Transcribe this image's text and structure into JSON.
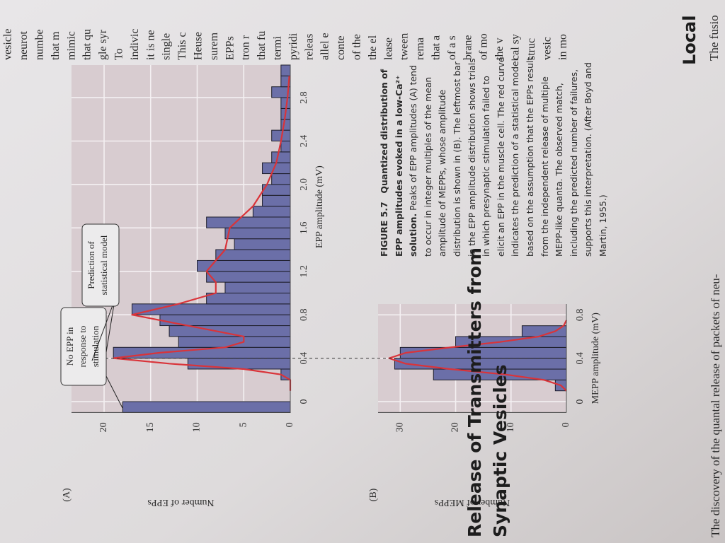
{
  "chart_data": [
    {
      "type": "histogram",
      "label": "(A)",
      "xlabel": "EPP amplitude (mV)",
      "ylabel": "Number of EPPs",
      "bins": [
        -0.1,
        0,
        0.1,
        0.2,
        0.3,
        0.4,
        0.5,
        0.6,
        0.7,
        0.8,
        0.9,
        1,
        1.1,
        1.2,
        1.3,
        1.4,
        1.5,
        1.6,
        1.7,
        1.8,
        1.9,
        2,
        2.1,
        2.2,
        2.3,
        2.4,
        2.5,
        2.6,
        2.7,
        2.8,
        2.9,
        3,
        3.1
      ],
      "values": [
        18,
        0,
        0,
        1,
        11,
        19,
        12,
        13,
        14,
        17,
        9,
        7,
        9,
        10,
        8,
        6,
        7,
        9,
        4,
        3,
        3,
        2,
        3,
        2,
        1,
        2,
        1,
        1,
        1,
        2,
        1,
        1
      ],
      "color": "#6b6fa8",
      "curve": {
        "color": "#d9343a",
        "x": [
          0.1,
          0.2,
          0.25,
          0.3,
          0.35,
          0.4,
          0.45,
          0.5,
          0.55,
          0.6,
          0.7,
          0.8,
          0.9,
          1,
          1.1,
          1.2,
          1.3,
          1.4,
          1.6,
          1.8,
          2,
          2.2,
          2.4,
          2.6,
          2.8,
          3
        ],
        "values": [
          0,
          0,
          1,
          5,
          13,
          19,
          14,
          7,
          5,
          5,
          11,
          17,
          12,
          8,
          8,
          9,
          8,
          7,
          6.5,
          4,
          2.5,
          1.5,
          1,
          0.6,
          0.3,
          0.1
        ]
      },
      "xlim": [
        -0.1,
        3.1
      ],
      "ylim": [
        0,
        23.5
      ],
      "xticks": [
        0,
        0.4,
        0.8,
        1.2,
        1.6,
        {
          "value": 2,
          "label": "2.0"
        },
        2.4,
        2.8
      ],
      "yticks": [
        0,
        5,
        10,
        15,
        20
      ],
      "grid": true,
      "annotations": [
        [
          "No EPP in",
          "response to",
          "stimulation"
        ],
        [
          "Prediction of",
          "statistical model"
        ]
      ]
    },
    {
      "type": "histogram",
      "label": "(B)",
      "xlabel": "MEPP amplitude (mV)",
      "ylabel": "Number of MEPPs",
      "bins": [
        0.1,
        0.2,
        0.3,
        0.4,
        0.5,
        0.6,
        0.7
      ],
      "values": [
        2,
        24,
        31,
        30,
        20,
        8
      ],
      "color": "#6b6fa8",
      "curve": {
        "color": "#d9343a",
        "x": [
          0.1,
          0.15,
          0.2,
          0.25,
          0.3,
          0.35,
          0.4,
          0.45,
          0.5,
          0.55,
          0.6,
          0.65,
          0.7,
          0.75
        ],
        "values": [
          0,
          1,
          4,
          11,
          21,
          29,
          32,
          29,
          21,
          12,
          5,
          2,
          0.5,
          0
        ]
      },
      "xlim": [
        -0.1,
        0.9
      ],
      "ylim": [
        0,
        34
      ],
      "xticks": [
        0,
        0.4,
        0.8
      ],
      "yticks": [
        0,
        10,
        20,
        30
      ],
      "grid": true,
      "dashed_line_x": 0.4
    }
  ],
  "caption": {
    "label": "FIGURE 5.7",
    "title": "Quantized distribution of EPP amplitudes evoked in a low-Ca²⁺ solution.",
    "text": "Peaks of EPP amplitudes (A) tend to occur in integer multiples of the mean amplitude of MEPPs, whose amplitude distribution is shown in (B). The leftmost bar in the EPP amplitude distribution shows trials in which presynaptic stimulation failed to elicit an EPP in the muscle cell. The red curve indicates the prediction of a statistical model based on the assumption that the EPPs result from the independent release of multiple MEPP-like quanta. The observed match, including the predicted number of failures, supports this interpretation. (After Boyd and Martin, 1955.)"
  },
  "heading": [
    "Release of Transmitters from",
    "Synaptic Vesicles"
  ],
  "body_line": "The discovery of the quantal release of packets of neu-",
  "side_heading": "Local",
  "side_body_line": "The fusio",
  "side_column": [
    "vesicle",
    "neurot",
    "numbe",
    "that m",
    "mimic",
    "that qu",
    "gle syr",
    "To",
    "indivic",
    "it is ne",
    "single",
    "This c",
    "Heuse",
    "surem",
    "EPPs",
    "tron r",
    "that fu",
    "termi",
    "pyridi",
    "releas",
    "allel e",
    "conte",
    "of the",
    "the el",
    "lease",
    "tween",
    "rema",
    "that a",
    "of a s",
    "brane",
    "of mo",
    "the v",
    "cal sy",
    "struc",
    "vesic",
    "in mo"
  ]
}
